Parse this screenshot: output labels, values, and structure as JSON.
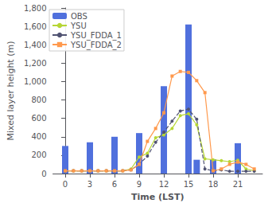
{
  "chart_data": {
    "type": "bar",
    "xlabel": "Time (LST)",
    "ylabel": "Mixed layer height (m)",
    "xlim": [
      -1.5,
      24
    ],
    "xticks": [
      0,
      3,
      6,
      9,
      12,
      15,
      18,
      21
    ],
    "ylim": [
      0,
      1800
    ],
    "yticks": [
      0,
      200,
      400,
      600,
      800,
      {
        "value": 1000,
        "label": "1,000"
      },
      {
        "value": 1200,
        "label": "1,200"
      },
      {
        "value": 1400,
        "label": "1,400"
      },
      {
        "value": 1600,
        "label": "1,600"
      },
      {
        "value": 1800,
        "label": "1,800"
      }
    ],
    "grid": false,
    "legend": "upper left",
    "series": [
      {
        "name": "OBS",
        "type": "bar",
        "x": [
          0,
          3,
          6,
          9,
          12,
          15,
          16,
          18,
          21
        ],
        "values": [
          300,
          340,
          400,
          440,
          950,
          1620,
          150,
          155,
          330
        ]
      },
      {
        "name": "YSU",
        "type": "line",
        "marker": "circle",
        "line_style": "solid",
        "x": [
          0,
          1,
          2,
          3,
          4,
          5,
          6,
          7,
          8,
          9,
          10,
          11,
          12,
          13,
          14,
          15,
          16,
          17,
          18,
          19,
          20,
          21,
          22,
          23
        ],
        "values": [
          30,
          30,
          30,
          30,
          30,
          30,
          30,
          30,
          50,
          180,
          220,
          390,
          420,
          490,
          630,
          650,
          530,
          160,
          150,
          140,
          130,
          145,
          50,
          30
        ]
      },
      {
        "name": "YSU_FDDA_1",
        "type": "line",
        "marker": "circle",
        "line_style": "dashed",
        "x": [
          0,
          1,
          2,
          3,
          4,
          5,
          6,
          7,
          8,
          9,
          10,
          11,
          12,
          13,
          14,
          15,
          16,
          17,
          18,
          19,
          20,
          21,
          22,
          23
        ],
        "values": [
          30,
          30,
          30,
          30,
          30,
          30,
          30,
          30,
          40,
          100,
          190,
          340,
          450,
          570,
          680,
          700,
          590,
          50,
          30,
          40,
          25,
          25,
          25,
          25
        ]
      },
      {
        "name": "YSU_FDDA_2",
        "type": "line",
        "marker": "square",
        "line_style": "solid",
        "x": [
          0,
          1,
          2,
          3,
          4,
          5,
          6,
          7,
          8,
          9,
          10,
          11,
          12,
          13,
          14,
          15,
          16,
          17,
          18,
          19,
          20,
          21,
          22,
          23
        ],
        "values": [
          30,
          30,
          30,
          30,
          30,
          30,
          30,
          30,
          40,
          100,
          350,
          490,
          660,
          1060,
          1110,
          1100,
          1010,
          880,
          30,
          50,
          100,
          125,
          100,
          50
        ]
      }
    ]
  }
}
